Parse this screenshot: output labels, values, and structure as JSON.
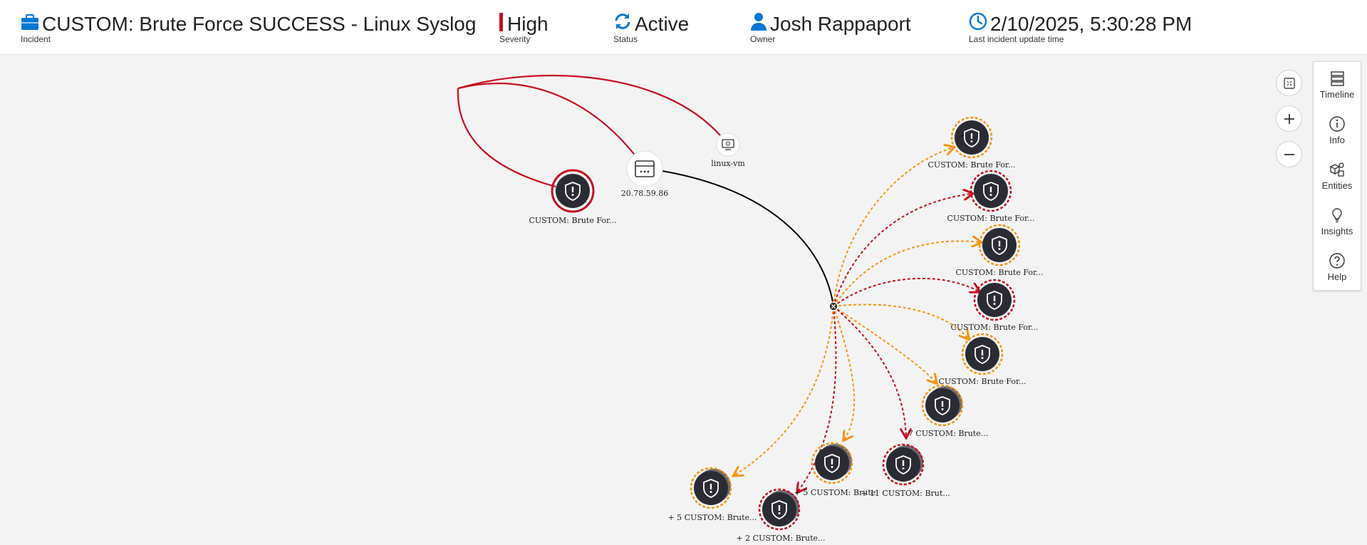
{
  "header": {
    "title": "CUSTOM: Brute Force SUCCESS - Linux Syslog",
    "title_label": "Incident",
    "severity": "High",
    "severity_label": "Severity",
    "status": "Active",
    "status_label": "Status",
    "owner": "Josh Rappaport",
    "owner_label": "Owner",
    "updated": "2/10/2025, 5:30:28 PM",
    "updated_label": "Last incident update time"
  },
  "colors": {
    "severity": "#c50f1f",
    "accent": "#0078d4",
    "alert_orange": "#f7930e",
    "alert_red": "#c50f1f"
  },
  "graph": {
    "ip_label": "20.78.59.86",
    "vm_label": "linux-vm",
    "main_alert_label": "CUSTOM: Brute For...",
    "alerts": [
      {
        "label": "CUSTOM: Brute For...",
        "ring": "orange"
      },
      {
        "label": "CUSTOM: Brute For...",
        "ring": "red"
      },
      {
        "label": "CUSTOM: Brute For...",
        "ring": "orange"
      },
      {
        "label": "CUSTOM: Brute For...",
        "ring": "red"
      },
      {
        "label": "CUSTOM: Brute For...",
        "ring": "orange"
      }
    ],
    "groups": [
      {
        "label": "7 CUSTOM: Brute...",
        "ring": "orange"
      },
      {
        "label": "+ 11 CUSTOM: Brut...",
        "ring": "red"
      },
      {
        "label": "+ 5 CUSTOM: Brute",
        "ring": "orange"
      },
      {
        "label": "+ 5 CUSTOM: Brute...",
        "ring": "orange"
      },
      {
        "label": "+ 2 CUSTOM: Brute...",
        "ring": "red"
      }
    ]
  },
  "panel": {
    "timeline": "Timeline",
    "info": "Info",
    "entities": "Entities",
    "insights": "Insights",
    "help": "Help"
  }
}
